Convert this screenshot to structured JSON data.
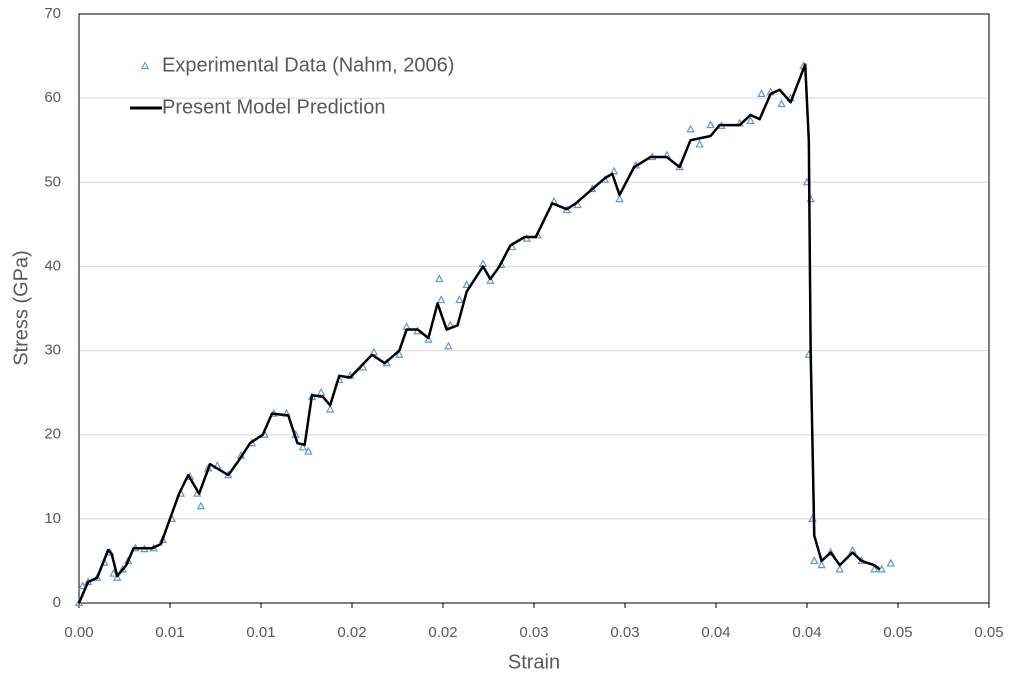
{
  "chart_data": {
    "type": "scatter",
    "xlabel": "Strain",
    "ylabel": "Stress (GPa)",
    "xlim": [
      0,
      0.05
    ],
    "ylim": [
      0,
      70
    ],
    "xticks": [
      {
        "value": 0,
        "label": "0.00"
      },
      {
        "value": 0.005,
        "label": "0.01"
      },
      0.01,
      {
        "value": 0.015,
        "label": "0.02"
      },
      0.02,
      {
        "value": 0.025,
        "label": "0.03"
      },
      0.03,
      {
        "value": 0.035,
        "label": "0.04"
      },
      0.04,
      {
        "value": 0.045,
        "label": "0.05"
      },
      0.05
    ],
    "yticks": [
      0,
      10,
      20,
      30,
      40,
      50,
      60,
      70
    ],
    "grid": true,
    "legend": "upper left",
    "series": [
      {
        "name": "Experimental Data (Nahm, 2006)",
        "color": "#5b9bd5",
        "style": "markers",
        "x": [
          0,
          0.0002,
          0.0005,
          0.001,
          0.0014,
          0.0017,
          0.0019,
          0.0021,
          0.0024,
          0.0027,
          0.0031,
          0.0036,
          0.0041,
          0.0046,
          0.0051,
          0.0056,
          0.0061,
          0.0065,
          0.0067,
          0.0071,
          0.0076,
          0.0082,
          0.0089,
          0.0095,
          0.0102,
          0.0107,
          0.0114,
          0.0119,
          0.0123,
          0.0126,
          0.0128,
          0.0133,
          0.0138,
          0.0143,
          0.0149,
          0.0156,
          0.0162,
          0.0169,
          0.0176,
          0.018,
          0.0186,
          0.0192,
          0.0198,
          0.0199,
          0.0203,
          0.0204,
          0.0209,
          0.0213,
          0.0222,
          0.0226,
          0.0232,
          0.0238,
          0.0246,
          0.0252,
          0.0261,
          0.0268,
          0.0274,
          0.0282,
          0.0289,
          0.0294,
          0.0297,
          0.0306,
          0.0315,
          0.0323,
          0.033,
          0.0336,
          0.0341,
          0.0347,
          0.0353,
          0.0363,
          0.0369,
          0.0375,
          0.038,
          0.0386,
          0.0391,
          0.0398,
          0.04,
          0.0401,
          0.0402,
          0.0403,
          0.0404,
          0.0408,
          0.0413,
          0.0418,
          0.0425,
          0.043,
          0.0437,
          0.0441,
          0.0446
        ],
        "values": [
          0,
          2,
          2.5,
          3,
          4.8,
          6,
          3.5,
          3,
          4,
          5,
          6.5,
          6.4,
          6.5,
          7.5,
          10,
          13,
          15,
          13,
          11.5,
          16,
          16.3,
          15.2,
          17.5,
          19,
          20,
          22.5,
          22.5,
          20,
          18.5,
          18,
          24.5,
          25,
          23,
          26.5,
          27,
          28,
          29.8,
          28.5,
          29.5,
          32.8,
          32.3,
          31.3,
          38.5,
          36,
          30.5,
          33,
          36,
          37.8,
          40.3,
          38.3,
          40.2,
          42.3,
          43.3,
          43.7,
          47.7,
          46.7,
          47.3,
          49.2,
          50.3,
          51.3,
          48,
          52,
          53,
          53.2,
          51.8,
          56.3,
          54.5,
          56.8,
          56.7,
          57,
          57.3,
          60.5,
          60.7,
          59.3,
          60,
          63.8,
          50,
          29.5,
          48,
          10,
          5,
          4.5,
          6,
          4,
          6.2,
          5,
          4,
          4,
          4.7
        ]
      },
      {
        "name": "Present Model Prediction",
        "color": "#000000",
        "style": "line",
        "x": [
          0,
          0.0005,
          0.001,
          0.0016,
          0.0018,
          0.0021,
          0.0026,
          0.003,
          0.004,
          0.0045,
          0.005,
          0.0055,
          0.006,
          0.0066,
          0.0072,
          0.0082,
          0.0088,
          0.0094,
          0.0101,
          0.0106,
          0.0115,
          0.012,
          0.0124,
          0.0128,
          0.0134,
          0.0138,
          0.0143,
          0.0149,
          0.0161,
          0.0168,
          0.0176,
          0.018,
          0.0186,
          0.0192,
          0.0197,
          0.0202,
          0.0208,
          0.0213,
          0.0222,
          0.0226,
          0.0231,
          0.0237,
          0.0245,
          0.0251,
          0.026,
          0.0268,
          0.0273,
          0.0281,
          0.0289,
          0.0293,
          0.0297,
          0.0305,
          0.0314,
          0.0323,
          0.033,
          0.0336,
          0.0347,
          0.0352,
          0.0363,
          0.0369,
          0.0374,
          0.038,
          0.0385,
          0.0391,
          0.0399,
          0.0401,
          0.0402,
          0.0404,
          0.0408,
          0.0413,
          0.0418,
          0.0425,
          0.043,
          0.0437,
          0.044
        ],
        "values": [
          0,
          2.5,
          3,
          6.3,
          5.8,
          3.2,
          4.5,
          6.5,
          6.5,
          7,
          10,
          13,
          15.2,
          13,
          16.5,
          15.2,
          17,
          19,
          20,
          22.5,
          22.3,
          19,
          18.8,
          24.7,
          24.5,
          23.5,
          27,
          26.8,
          29.5,
          28.5,
          30,
          32.5,
          32.5,
          31.5,
          35.6,
          32.5,
          33,
          37,
          40,
          38.5,
          40,
          42.5,
          43.5,
          43.5,
          47.5,
          46.8,
          47.5,
          49,
          50.5,
          51,
          48.5,
          51.8,
          53,
          53,
          51.8,
          55,
          55.5,
          56.8,
          56.8,
          58,
          57.5,
          60.5,
          61,
          59.5,
          64,
          55,
          30,
          8,
          5,
          6,
          4.5,
          6,
          5,
          4.5,
          4
        ]
      }
    ]
  }
}
